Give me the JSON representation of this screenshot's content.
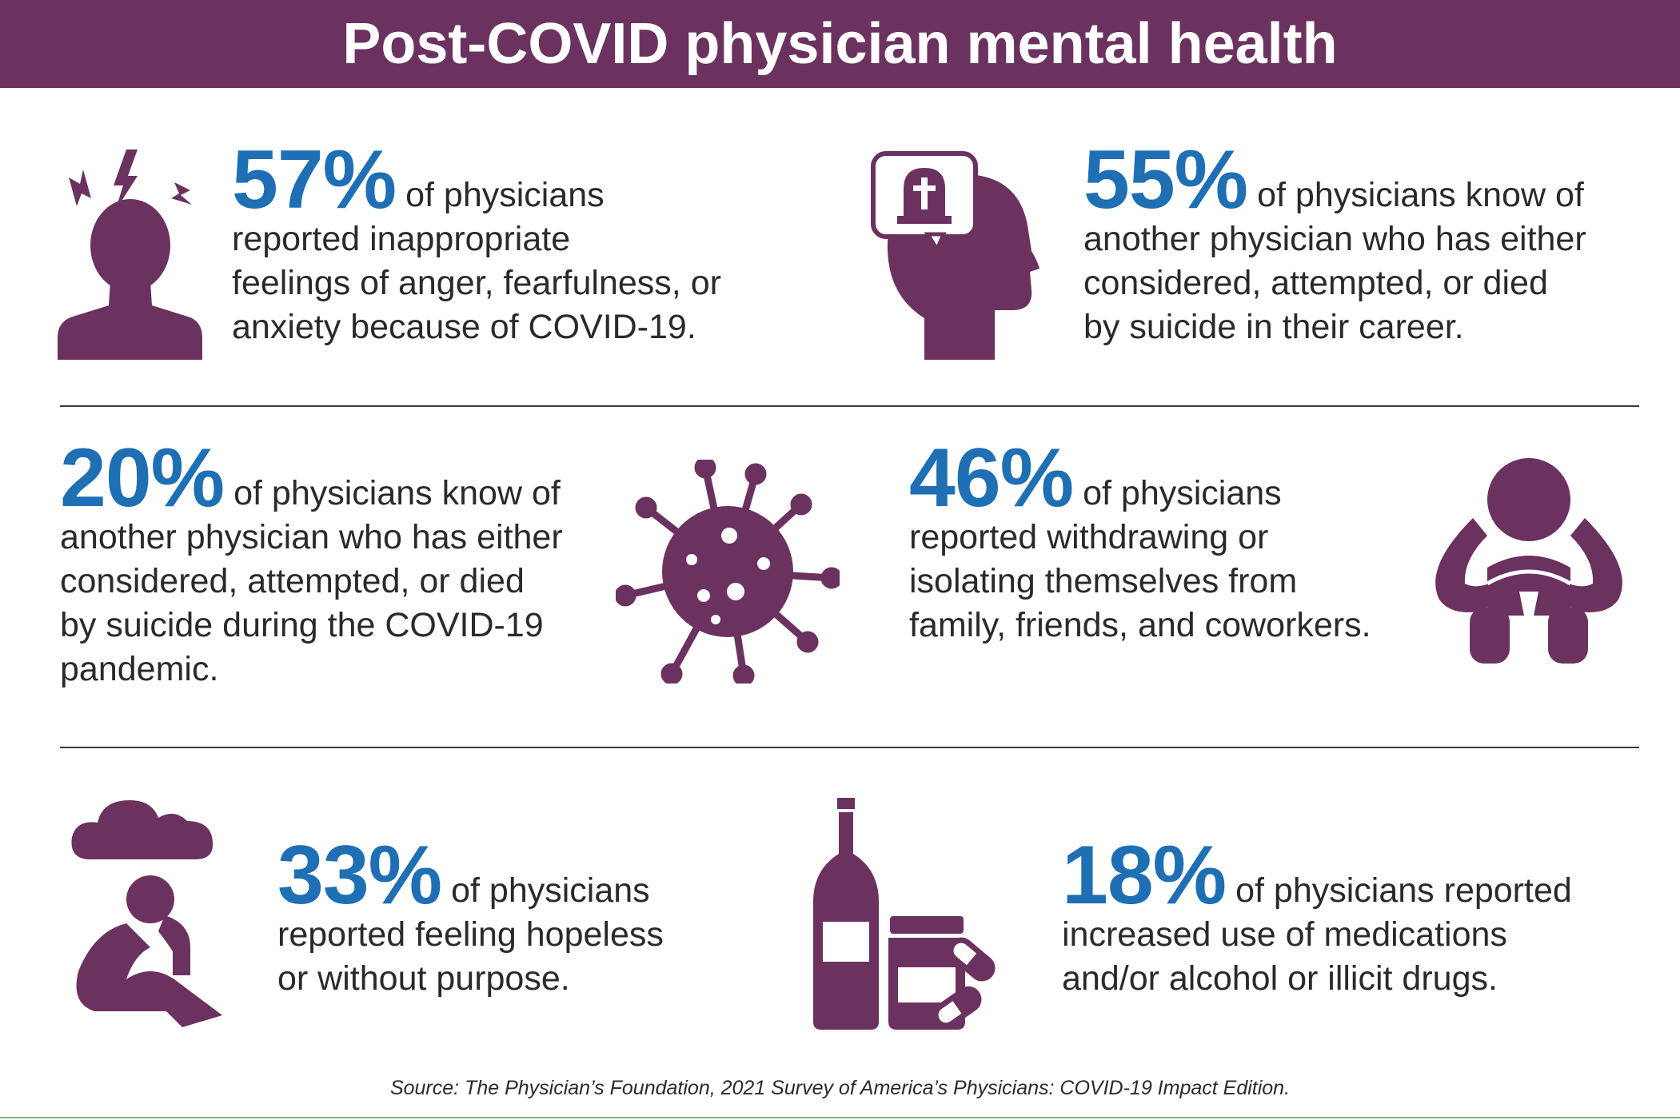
{
  "header": {
    "title": "Post-COVID physician mental health"
  },
  "stats": [
    {
      "pct": "57%",
      "lead": " of physicians",
      "rest": [
        "reported inappropriate",
        "feelings of anger, fearfulness, or",
        "anxiety because of COVID-19."
      ],
      "icon": "stressed-person-icon"
    },
    {
      "pct": "55%",
      "lead": " of physicians know of",
      "rest": [
        "another physician who has either",
        "considered, attempted, or died",
        "by suicide in their career."
      ],
      "icon": "head-tombstone-icon"
    },
    {
      "pct": "20%",
      "lead": " of physicians know of",
      "rest": [
        "another physician who has either",
        "considered, attempted, or died",
        "by suicide during the COVID-19",
        "pandemic."
      ],
      "icon": "virus-icon"
    },
    {
      "pct": "46%",
      "lead": " of physicians",
      "rest": [
        "reported withdrawing or",
        "isolating themselves from",
        "family, friends, and coworkers."
      ],
      "icon": "withdrawn-person-icon"
    },
    {
      "pct": "33%",
      "lead": " of physicians",
      "rest": [
        "reported feeling hopeless",
        "or without purpose."
      ],
      "icon": "sad-person-cloud-icon"
    },
    {
      "pct": "18%",
      "lead": " of physicians reported",
      "rest": [
        "increased use of medications",
        "and/or alcohol or illicit drugs."
      ],
      "icon": "bottle-pills-icon"
    }
  ],
  "source": "Source: The Physician’s Foundation, 2021 Survey of America’s Physicians: COVID-19 Impact Edition.",
  "colors": {
    "header_bg": "#6b3260",
    "accent": "#1e6fb4",
    "icon": "#6b3260"
  }
}
